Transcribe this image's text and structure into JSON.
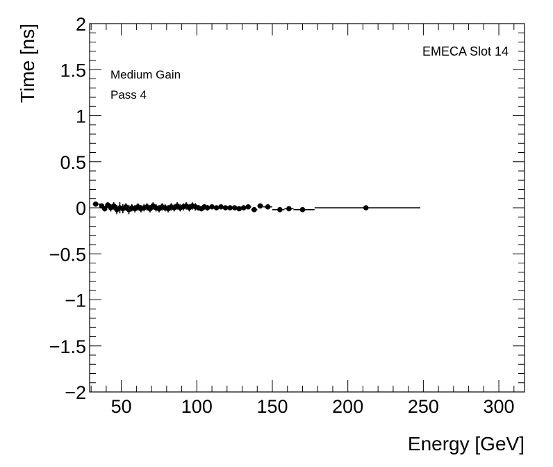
{
  "chart_data": {
    "type": "scatter",
    "title": "",
    "xlabel": "Energy [GeV]",
    "ylabel": "Time [ns]",
    "xlim": [
      29,
      317
    ],
    "ylim": [
      -2,
      2
    ],
    "x_ticks": [
      50,
      100,
      150,
      200,
      250,
      300
    ],
    "y_ticks": [
      -2,
      -1.5,
      -1,
      -0.5,
      0,
      0.5,
      1,
      1.5,
      2
    ],
    "y_tick_labels": [
      "−2",
      "−1.5",
      "−1",
      "−0.5",
      "0",
      "0.5",
      "1",
      "1.5",
      "2"
    ],
    "annotations": {
      "slot": "EMECA Slot 14",
      "gain": "Medium Gain",
      "pass": "Pass 4"
    },
    "series": [
      {
        "name": "EMECA Slot 14",
        "marker": "circle",
        "color": "#000000",
        "points": [
          {
            "x": 33,
            "y": 0.04,
            "xlo": 31,
            "xhi": 36,
            "yerr": 0.01
          },
          {
            "x": 37,
            "y": 0.02,
            "xlo": 36,
            "xhi": 38,
            "yerr": 0.02
          },
          {
            "x": 39,
            "y": -0.01,
            "xlo": 38,
            "xhi": 40,
            "yerr": 0.03
          },
          {
            "x": 41,
            "y": 0.03,
            "xlo": 40,
            "xhi": 42,
            "yerr": 0.03
          },
          {
            "x": 43,
            "y": 0.0,
            "xlo": 42,
            "xhi": 44,
            "yerr": 0.04
          },
          {
            "x": 45,
            "y": 0.02,
            "xlo": 44,
            "xhi": 46,
            "yerr": 0.04
          },
          {
            "x": 47,
            "y": -0.02,
            "xlo": 46,
            "xhi": 48,
            "yerr": 0.05
          },
          {
            "x": 49,
            "y": 0.0,
            "xlo": 48,
            "xhi": 50,
            "yerr": 0.06
          },
          {
            "x": 51,
            "y": -0.01,
            "xlo": 50,
            "xhi": 52,
            "yerr": 0.05
          },
          {
            "x": 53,
            "y": 0.01,
            "xlo": 52,
            "xhi": 54,
            "yerr": 0.04
          },
          {
            "x": 55,
            "y": -0.02,
            "xlo": 54,
            "xhi": 56,
            "yerr": 0.05
          },
          {
            "x": 57,
            "y": 0.0,
            "xlo": 56,
            "xhi": 58,
            "yerr": 0.04
          },
          {
            "x": 59,
            "y": -0.01,
            "xlo": 58,
            "xhi": 60,
            "yerr": 0.04
          },
          {
            "x": 61,
            "y": 0.01,
            "xlo": 60,
            "xhi": 62,
            "yerr": 0.04
          },
          {
            "x": 63,
            "y": -0.01,
            "xlo": 62,
            "xhi": 64,
            "yerr": 0.04
          },
          {
            "x": 65,
            "y": 0.0,
            "xlo": 64,
            "xhi": 66,
            "yerr": 0.04
          },
          {
            "x": 67,
            "y": 0.01,
            "xlo": 66,
            "xhi": 68,
            "yerr": 0.04
          },
          {
            "x": 69,
            "y": -0.01,
            "xlo": 68,
            "xhi": 70,
            "yerr": 0.04
          },
          {
            "x": 71,
            "y": 0.02,
            "xlo": 70,
            "xhi": 72,
            "yerr": 0.04
          },
          {
            "x": 73,
            "y": 0.0,
            "xlo": 72,
            "xhi": 74,
            "yerr": 0.04
          },
          {
            "x": 75,
            "y": -0.01,
            "xlo": 74,
            "xhi": 76,
            "yerr": 0.04
          },
          {
            "x": 77,
            "y": 0.01,
            "xlo": 76,
            "xhi": 78,
            "yerr": 0.04
          },
          {
            "x": 79,
            "y": 0.0,
            "xlo": 78,
            "xhi": 80,
            "yerr": 0.04
          },
          {
            "x": 81,
            "y": -0.01,
            "xlo": 80,
            "xhi": 82,
            "yerr": 0.04
          },
          {
            "x": 83,
            "y": 0.01,
            "xlo": 82,
            "xhi": 84,
            "yerr": 0.04
          },
          {
            "x": 85,
            "y": 0.0,
            "xlo": 84,
            "xhi": 86,
            "yerr": 0.04
          },
          {
            "x": 87,
            "y": 0.02,
            "xlo": 86,
            "xhi": 88,
            "yerr": 0.04
          },
          {
            "x": 89,
            "y": 0.0,
            "xlo": 88,
            "xhi": 90,
            "yerr": 0.04
          },
          {
            "x": 91,
            "y": 0.01,
            "xlo": 90,
            "xhi": 92,
            "yerr": 0.04
          },
          {
            "x": 93,
            "y": 0.02,
            "xlo": 92,
            "xhi": 94,
            "yerr": 0.04
          },
          {
            "x": 95,
            "y": 0.0,
            "xlo": 94,
            "xhi": 96,
            "yerr": 0.04
          },
          {
            "x": 97,
            "y": 0.02,
            "xlo": 96,
            "xhi": 98,
            "yerr": 0.04
          },
          {
            "x": 99,
            "y": 0.01,
            "xlo": 98,
            "xhi": 100,
            "yerr": 0.04
          },
          {
            "x": 101,
            "y": 0.0,
            "xlo": 100,
            "xhi": 102,
            "yerr": 0.03
          },
          {
            "x": 103,
            "y": -0.01,
            "xlo": 102,
            "xhi": 104,
            "yerr": 0.03
          },
          {
            "x": 105,
            "y": 0.01,
            "xlo": 104,
            "xhi": 106,
            "yerr": 0.03
          },
          {
            "x": 107,
            "y": 0.0,
            "xlo": 106,
            "xhi": 108,
            "yerr": 0.03
          },
          {
            "x": 110,
            "y": 0.01,
            "xlo": 108,
            "xhi": 112,
            "yerr": 0.02
          },
          {
            "x": 113,
            "y": 0.0,
            "xlo": 112,
            "xhi": 114,
            "yerr": 0.02
          },
          {
            "x": 116,
            "y": 0.01,
            "xlo": 114,
            "xhi": 118,
            "yerr": 0.02
          },
          {
            "x": 119,
            "y": 0.0,
            "xlo": 118,
            "xhi": 120,
            "yerr": 0.02
          },
          {
            "x": 122,
            "y": 0.0,
            "xlo": 120,
            "xhi": 124,
            "yerr": 0.02
          },
          {
            "x": 125,
            "y": 0.0,
            "xlo": 124,
            "xhi": 126,
            "yerr": 0.02
          },
          {
            "x": 128,
            "y": -0.01,
            "xlo": 126,
            "xhi": 130,
            "yerr": 0.02
          },
          {
            "x": 131,
            "y": 0.0,
            "xlo": 130,
            "xhi": 132,
            "yerr": 0.02
          },
          {
            "x": 134,
            "y": 0.01,
            "xlo": 132,
            "xhi": 136,
            "yerr": 0.02
          },
          {
            "x": 138,
            "y": -0.02,
            "xlo": 136,
            "xhi": 140,
            "yerr": 0.02
          },
          {
            "x": 142,
            "y": 0.02,
            "xlo": 140,
            "xhi": 144,
            "yerr": 0.01
          },
          {
            "x": 147,
            "y": 0.01,
            "xlo": 144,
            "xhi": 150,
            "yerr": 0.01
          },
          {
            "x": 155,
            "y": -0.02,
            "xlo": 150,
            "xhi": 158,
            "yerr": 0.01
          },
          {
            "x": 161,
            "y": -0.01,
            "xlo": 158,
            "xhi": 164,
            "yerr": 0.01
          },
          {
            "x": 170,
            "y": -0.02,
            "xlo": 164,
            "xhi": 178,
            "yerr": 0.01
          },
          {
            "x": 212,
            "y": 0.0,
            "xlo": 178,
            "xhi": 248,
            "yerr": 0.01
          }
        ]
      }
    ]
  }
}
